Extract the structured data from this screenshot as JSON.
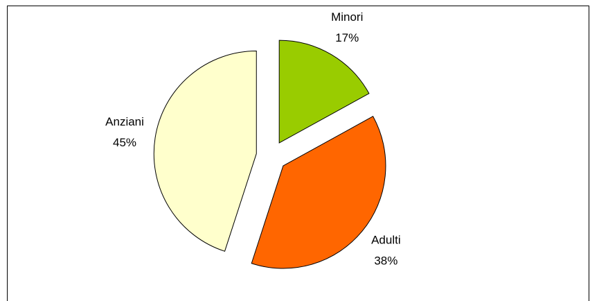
{
  "chart_data": {
    "type": "pie",
    "categories": [
      "Minori",
      "Adulti",
      "Anziani"
    ],
    "values": [
      17,
      38,
      45
    ],
    "value_labels": [
      "17%",
      "38%",
      "45%"
    ],
    "colors": [
      "#99cc00",
      "#ff6600",
      "#ffffcc"
    ],
    "exploded": true
  }
}
